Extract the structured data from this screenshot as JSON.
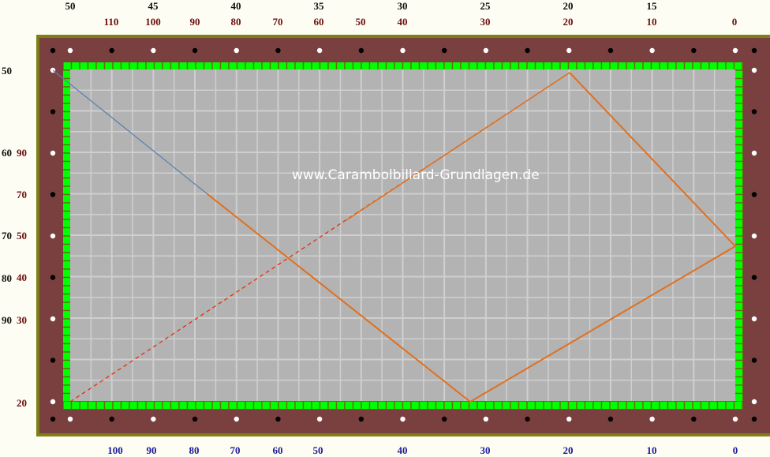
{
  "watermark": "www.Carambolbillard-Grundlagen.de",
  "colors": {
    "rail": "#7a3f3f",
    "frame": "#7f7f1a",
    "cushion": "#00ff00",
    "cloth": "#b3b3b3",
    "grid": "#cfcfcf",
    "trajectory": "#e07020",
    "aim_line": "#e03010",
    "cue_line": "#5b7fb0"
  },
  "scales": {
    "top_black": [
      "50",
      "45",
      "40",
      "35",
      "30",
      "25",
      "20",
      "15"
    ],
    "top_red": [
      "110",
      "100",
      "90",
      "80",
      "70",
      "60",
      "50",
      "40",
      "30",
      "20",
      "10",
      "0"
    ],
    "bottom_blue": [
      "100",
      "90",
      "80",
      "70",
      "60",
      "50",
      "40",
      "30",
      "20",
      "10",
      "0"
    ],
    "left_black": [
      "50",
      "60",
      "70",
      "80",
      "90"
    ],
    "left_red": [
      "90",
      "70",
      "50",
      "40",
      "30",
      "20"
    ]
  },
  "diagram": {
    "cue_ball_path": "blue cue line to first cushion contact",
    "paths": [
      "cue-line",
      "aim-line-dashed",
      "trajectory"
    ]
  }
}
